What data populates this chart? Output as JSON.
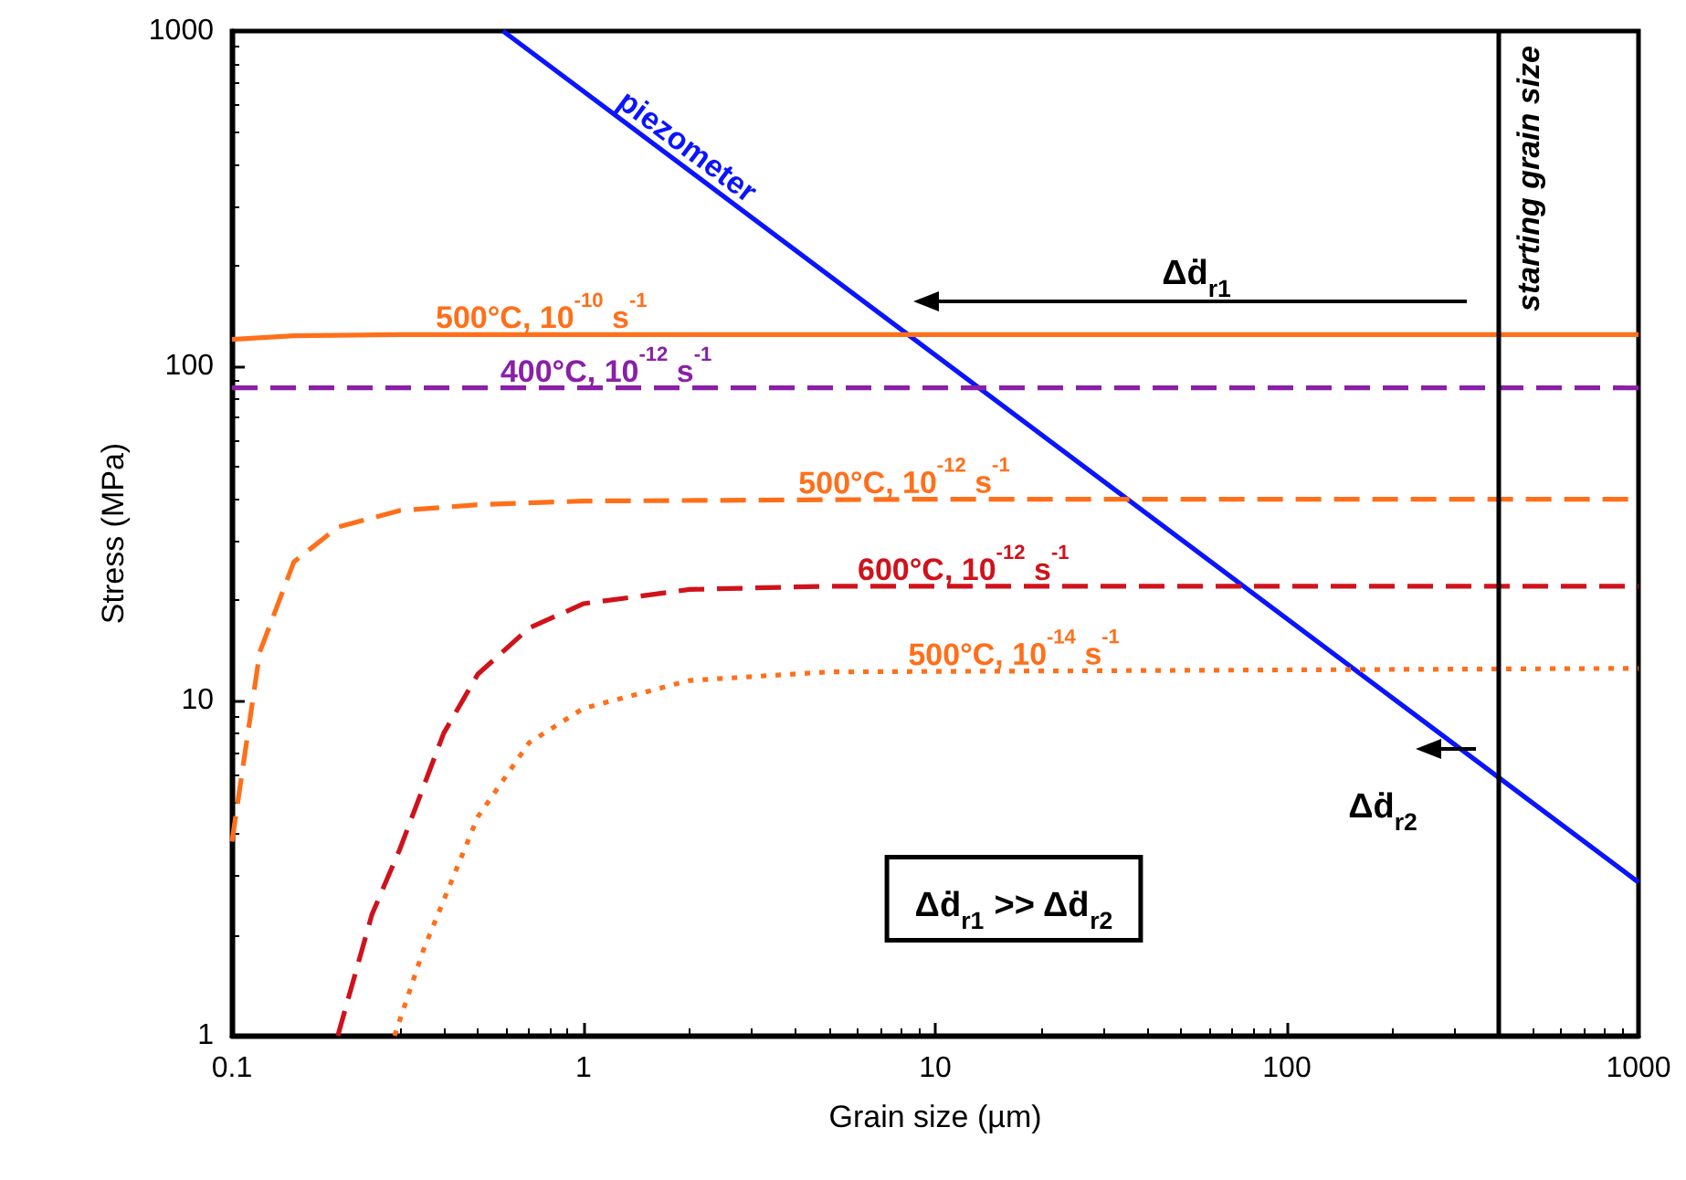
{
  "chart_data": {
    "type": "line",
    "xlabel": "Grain size (µm)",
    "ylabel": "Stress (MPa)",
    "log": "xy",
    "xlim": [
      0.1,
      1000
    ],
    "ylim": [
      1,
      1000
    ],
    "xticks": [
      0.1,
      1,
      10,
      100,
      1000
    ],
    "yticks": [
      1,
      10,
      100,
      1000
    ],
    "grid": false,
    "marker": "none",
    "series": [
      {
        "name": "piezometer",
        "color": "#0a14ff",
        "line_style": "solid",
        "x": [
          0.59,
          1000
        ],
        "values": [
          1000,
          2.87
        ]
      },
      {
        "name": "500°C, 10$^{-10}$ s$^{-1}$",
        "color": "#ff6f1a",
        "line_style": "solid",
        "x": [
          0.1,
          0.15,
          0.3,
          1000
        ],
        "values": [
          120,
          123,
          124,
          124
        ]
      },
      {
        "name": "400°C, 10$^{-12}$ s$^{-1}$",
        "color": "#8a1fa8",
        "line_style": "dashed",
        "x": [
          0.1,
          1000
        ],
        "values": [
          86,
          86
        ]
      },
      {
        "name": "500°C, 10$^{-12}$ s$^{-1}$",
        "color": "#ff6f1a",
        "line_style": "dashed",
        "x": [
          0.1,
          0.12,
          0.15,
          0.2,
          0.3,
          0.5,
          1,
          10,
          1000
        ],
        "values": [
          3.8,
          14,
          26,
          33,
          37,
          38.5,
          39.5,
          40,
          40
        ]
      },
      {
        "name": "600°C, 10$^{-12}$ s$^{-1}$",
        "color": "#d0121b",
        "line_style": "dashed",
        "x": [
          0.2,
          0.25,
          0.3,
          0.4,
          0.5,
          0.7,
          1,
          2,
          5,
          1000
        ],
        "values": [
          1,
          2.3,
          3.6,
          8,
          12,
          16.5,
          19.5,
          21.5,
          22,
          22
        ]
      },
      {
        "name": "500°C, 10$^{-14}$ s$^{-1}$",
        "color": "#ff6f1a",
        "line_style": "dotted",
        "x": [
          0.29,
          0.35,
          0.5,
          0.7,
          1,
          2,
          5,
          1000
        ],
        "values": [
          1,
          1.8,
          4.5,
          7.5,
          9.5,
          11.5,
          12.2,
          12.5
        ]
      }
    ],
    "ref_lines": [
      {
        "axis": "x",
        "value": 400,
        "label": "starting grain size",
        "color": "#000000",
        "line_style": "solid"
      }
    ],
    "annotations": [
      "Δḋ$_{r1}$",
      "Δḋ$_{r2}$",
      "Δḋ$_{r1}$ >> Δḋ$_{r2}$"
    ]
  }
}
